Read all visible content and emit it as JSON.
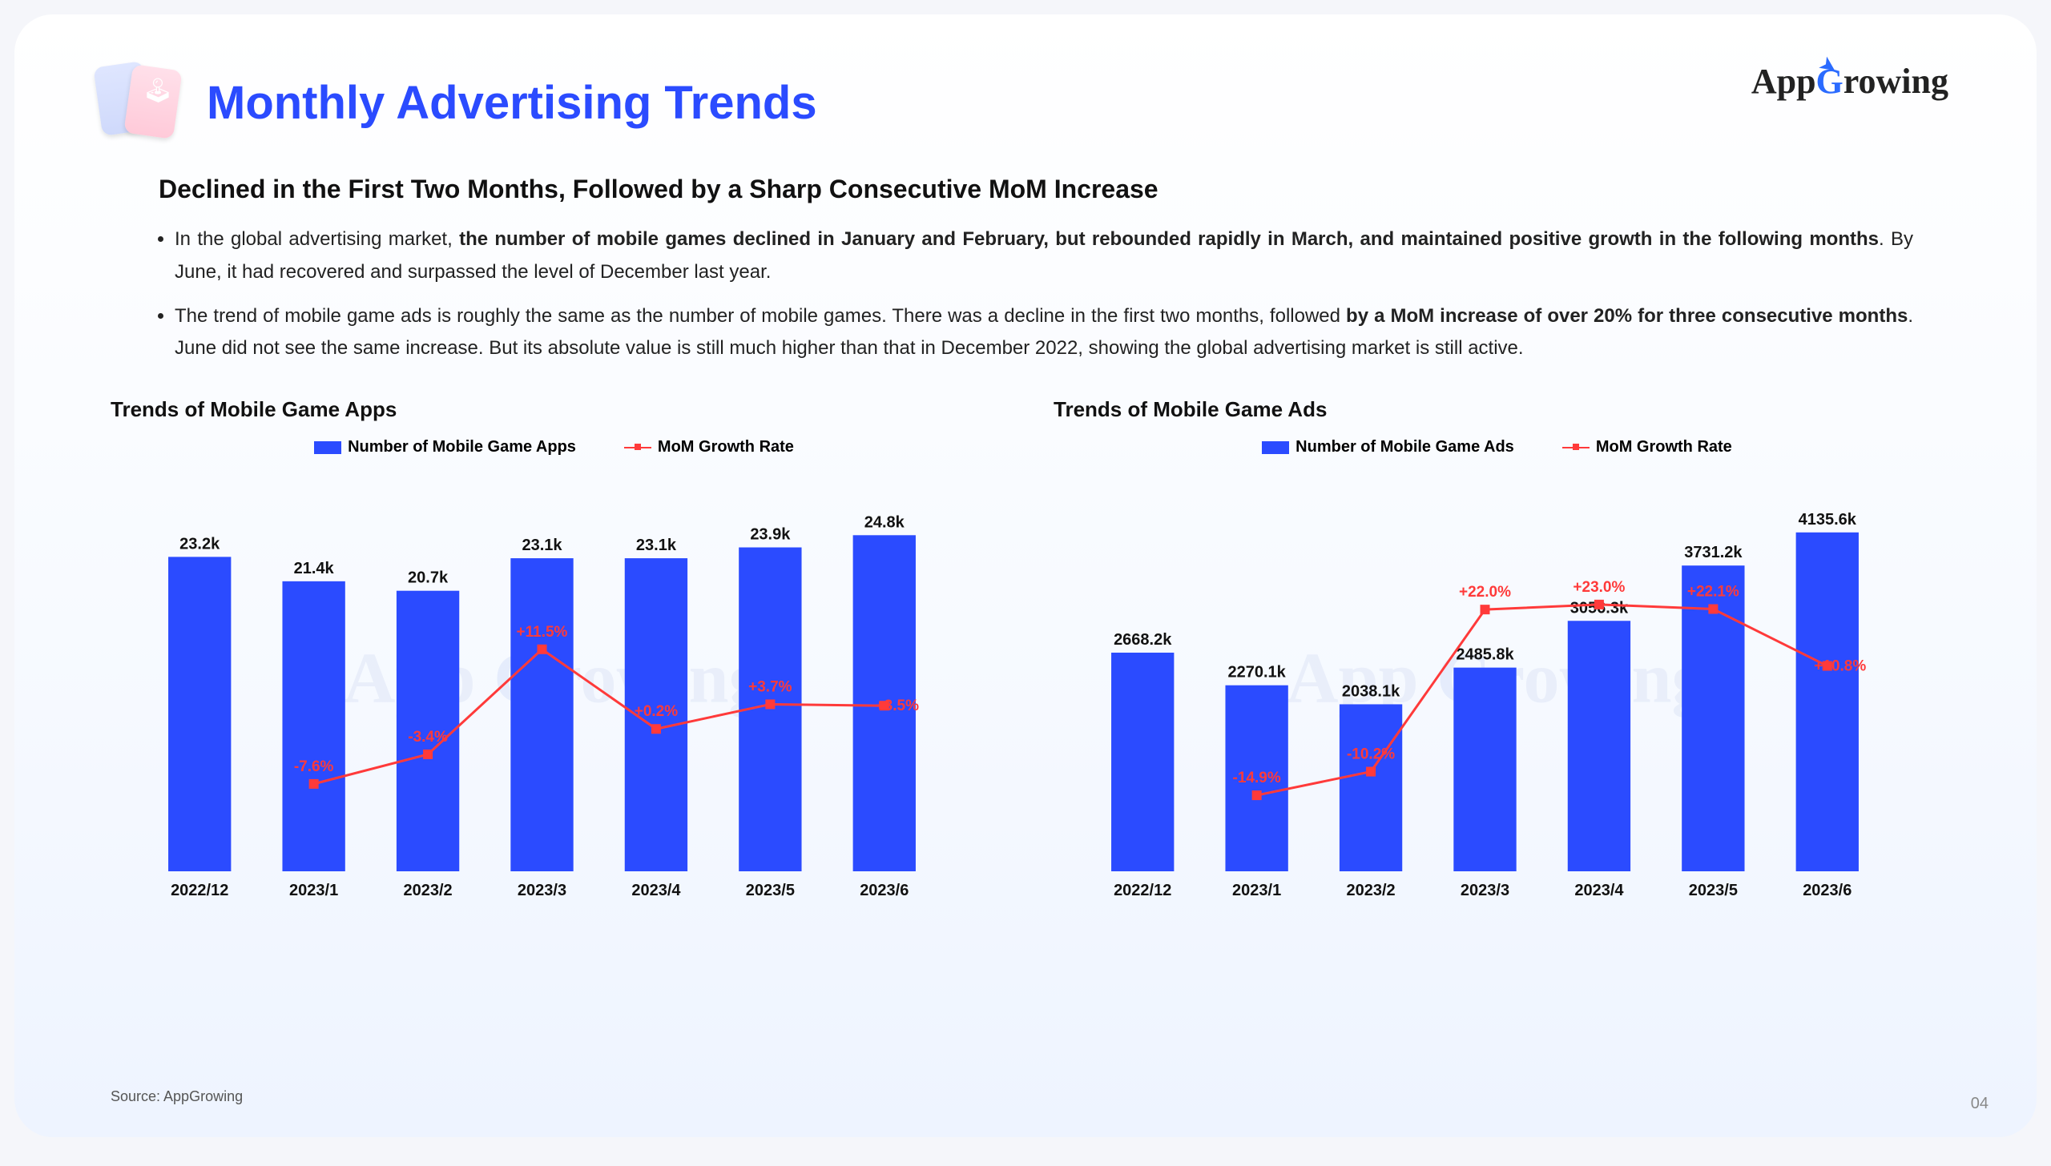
{
  "page_title": "Monthly Advertising Trends",
  "brand": {
    "pre": "App",
    "g": "G",
    "post": "rowing"
  },
  "subtitle": "Declined in the First Two Months, Followed by a Sharp Consecutive MoM Increase",
  "bullets": [
    {
      "pre": "In the global advertising market, ",
      "bold1": "the number of mobile games declined in January and February, but rebounded rapidly in March, and maintained positive growth in the following months",
      "post": ". By June, it had recovered and surpassed the level of December last year."
    },
    {
      "pre": "The trend of mobile game ads is roughly the same as the number of mobile games. There was a decline in the first two months, followed ",
      "bold1": "by a MoM increase of over 20% for three consecutive months",
      "post": ". June did not see the same increase. But its absolute value is still much higher than that in December 2022, showing the global advertising market is still active."
    }
  ],
  "chart_common": {
    "categories": [
      "2022/12",
      "2023/1",
      "2023/2",
      "2023/3",
      "2023/4",
      "2023/5",
      "2023/6"
    ],
    "bar_color": "#2B4BFF",
    "line_color": "#FF3A3A",
    "marker": "square",
    "bar_width_ratio": 0.55,
    "label_fontsize": 20,
    "category_fontsize": 20,
    "rate_fontsize": 19,
    "background": "transparent"
  },
  "chart_apps": {
    "title": "Trends of Mobile Game Apps",
    "legend_bar": "Number of Mobile Game Apps",
    "legend_line": "MoM Growth Rate",
    "bar_values": [
      23.2,
      21.4,
      20.7,
      23.1,
      23.1,
      23.9,
      24.8
    ],
    "bar_labels": [
      "23.2k",
      "21.4k",
      "20.7k",
      "23.1k",
      "23.1k",
      "23.9k",
      "24.8k"
    ],
    "bar_yrange": [
      0,
      26
    ],
    "rates": [
      null,
      -7.6,
      -3.4,
      11.5,
      0.2,
      3.7,
      3.5
    ],
    "rate_labels": [
      "",
      "-7.6%",
      "-3.4%",
      "+11.5%",
      "+0.2%",
      "+3.7%",
      "+3.5%"
    ],
    "rate_yrange": [
      -20,
      30
    ]
  },
  "chart_ads": {
    "title": "Trends of Mobile Game Ads",
    "legend_bar": "Number of Mobile Game Ads",
    "legend_line": "MoM Growth Rate",
    "bar_values": [
      2668.2,
      2270.1,
      2038.1,
      2485.8,
      3056.3,
      3731.2,
      4135.6
    ],
    "bar_labels": [
      "2668.2k",
      "2270.1k",
      "2038.1k",
      "2485.8k",
      "3056.3k",
      "3731.2k",
      "4135.6k"
    ],
    "bar_yrange": [
      0,
      4300
    ],
    "rates": [
      null,
      -14.9,
      -10.2,
      22.0,
      23.0,
      22.1,
      10.8
    ],
    "rate_labels": [
      "",
      "-14.9%",
      "-10.2%",
      "+22.0%",
      "+23.0%",
      "+22.1%",
      "+10.8%"
    ],
    "rate_yrange": [
      -30,
      40
    ]
  },
  "source": "Source: AppGrowing",
  "pagenum": "04"
}
